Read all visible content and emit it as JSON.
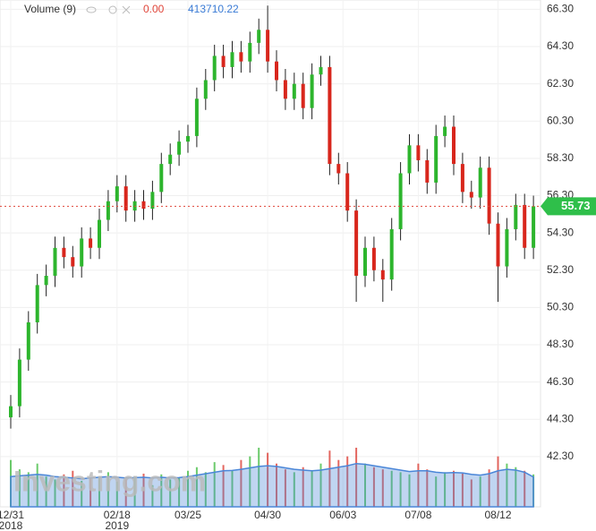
{
  "chart_data": {
    "type": "candlestick",
    "header": {
      "label": "Volume (9)",
      "change": "0.00",
      "ma_value": "413710.22"
    },
    "watermark": "Investing.com",
    "ylim": [
      39.6,
      66.8
    ],
    "yticks": [
      {
        "value": 42.3,
        "label": "42.30"
      },
      {
        "value": 44.3,
        "label": "44.30"
      },
      {
        "value": 46.3,
        "label": "46.30"
      },
      {
        "value": 48.3,
        "label": "48.30"
      },
      {
        "value": 50.3,
        "label": "50.30"
      },
      {
        "value": 52.3,
        "label": "52.30"
      },
      {
        "value": 54.3,
        "label": "54.30"
      },
      {
        "value": 56.3,
        "label": "56.30"
      },
      {
        "value": 58.3,
        "label": "58.30"
      },
      {
        "value": 60.3,
        "label": "60.30"
      },
      {
        "value": 62.3,
        "label": "62.30"
      },
      {
        "value": 64.3,
        "label": "64.30"
      },
      {
        "value": 66.3,
        "label": "66.30"
      }
    ],
    "xticks": [
      {
        "value": 0,
        "label": "12/31",
        "year": "2018"
      },
      {
        "value": 12,
        "label": "02/18",
        "year": "2019"
      },
      {
        "value": 20,
        "label": "03/25"
      },
      {
        "value": 29,
        "label": "04/30"
      },
      {
        "value": 37.5,
        "label": "06/03"
      },
      {
        "value": 46,
        "label": "07/08"
      },
      {
        "value": 55,
        "label": "08/12"
      }
    ],
    "last_price": 55.73,
    "up_color": "#2db52d",
    "down_color": "#d8261c",
    "wick_color": "#222",
    "grid": true,
    "open": [
      44.4,
      45.0,
      47.5,
      49.5,
      51.5,
      52.0,
      53.5,
      53.0,
      52.5,
      54.0,
      53.5,
      55.0,
      56.0,
      56.8,
      55.5,
      56.0,
      55.6,
      56.5,
      58.0,
      58.5,
      59.2,
      59.5,
      61.5,
      62.5,
      63.8,
      63.2,
      64.0,
      63.5,
      64.5,
      65.2,
      63.5,
      62.5,
      61.5,
      62.3,
      61.0,
      62.8,
      63.2,
      58.0,
      57.5,
      55.5,
      52.0,
      53.5,
      52.3,
      51.8,
      54.5,
      57.5,
      59.0,
      58.2,
      57.0,
      59.5,
      60.0,
      58.0,
      56.5,
      56.2,
      57.8,
      54.8,
      52.5,
      54.5,
      55.8,
      53.5
    ],
    "high": [
      45.6,
      48.1,
      50.1,
      52.1,
      52.6,
      54.1,
      54.1,
      53.6,
      54.6,
      54.6,
      55.6,
      56.6,
      57.4,
      57.4,
      56.6,
      56.6,
      57.1,
      58.6,
      59.1,
      59.8,
      60.1,
      62.1,
      63.1,
      64.4,
      64.4,
      64.6,
      64.6,
      65.1,
      65.8,
      66.5,
      64.1,
      63.1,
      62.9,
      62.9,
      63.4,
      63.8,
      63.8,
      58.6,
      58.1,
      56.1,
      54.1,
      54.1,
      52.9,
      55.1,
      58.1,
      59.6,
      59.6,
      58.8,
      60.1,
      60.6,
      60.6,
      58.6,
      57.1,
      58.4,
      58.4,
      55.4,
      55.1,
      56.4,
      56.4,
      56.3
    ],
    "low": [
      43.8,
      44.4,
      46.9,
      48.9,
      50.9,
      51.4,
      52.4,
      51.9,
      51.9,
      52.9,
      52.9,
      54.4,
      55.4,
      54.9,
      54.9,
      55.0,
      55.0,
      55.9,
      57.4,
      57.9,
      58.6,
      58.9,
      60.9,
      61.9,
      62.6,
      62.6,
      62.9,
      62.9,
      63.9,
      62.9,
      61.9,
      60.9,
      60.9,
      60.4,
      60.4,
      62.2,
      57.4,
      56.9,
      54.9,
      50.6,
      51.4,
      51.7,
      50.6,
      51.2,
      53.9,
      56.9,
      57.6,
      56.4,
      56.4,
      58.9,
      57.4,
      55.9,
      55.6,
      55.6,
      54.2,
      50.6,
      51.9,
      53.9,
      52.9,
      52.9
    ],
    "close": [
      45.0,
      47.5,
      49.5,
      51.5,
      52.0,
      53.5,
      53.0,
      52.5,
      54.0,
      53.5,
      55.0,
      56.0,
      56.8,
      55.5,
      56.0,
      55.6,
      56.5,
      58.0,
      58.5,
      59.2,
      59.5,
      61.5,
      62.5,
      63.8,
      63.2,
      64.0,
      63.5,
      64.5,
      65.2,
      63.5,
      62.5,
      61.5,
      62.3,
      61.0,
      62.8,
      63.2,
      58.0,
      57.5,
      55.5,
      52.0,
      53.5,
      52.3,
      51.8,
      54.5,
      57.5,
      59.0,
      58.2,
      57.0,
      59.5,
      60.0,
      58.0,
      56.5,
      56.2,
      57.8,
      54.8,
      52.5,
      54.5,
      55.8,
      53.5,
      55.73
    ],
    "volume": [
      650000,
      520000,
      480000,
      600000,
      420000,
      380000,
      450000,
      500000,
      360000,
      400000,
      420000,
      480000,
      350000,
      380000,
      420000,
      460000,
      300000,
      450000,
      380000,
      400000,
      500000,
      550000,
      480000,
      620000,
      580000,
      500000,
      650000,
      700000,
      820000,
      750000,
      600000,
      520000,
      480000,
      550000,
      500000,
      600000,
      780000,
      650000,
      700000,
      820000,
      600000,
      550000,
      520000,
      500000,
      480000,
      450000,
      600000,
      520000,
      420000,
      480000,
      500000,
      460000,
      380000,
      420000,
      520000,
      700000,
      600000,
      550000,
      500000,
      450000
    ],
    "volume_ma": {
      "color": "#4a86d8",
      "values": [
        420000,
        430000,
        440000,
        450000,
        440000,
        420000,
        410000,
        400000,
        390000,
        400000,
        410000,
        420000,
        410000,
        400000,
        405000,
        410000,
        400000,
        410000,
        400000,
        405000,
        420000,
        440000,
        460000,
        480000,
        500000,
        505000,
        520000,
        540000,
        560000,
        570000,
        560000,
        540000,
        520000,
        510000,
        500000,
        510000,
        530000,
        550000,
        570000,
        600000,
        590000,
        570000,
        550000,
        530000,
        510000,
        490000,
        500000,
        500000,
        480000,
        470000,
        475000,
        470000,
        450000,
        440000,
        460000,
        500000,
        520000,
        510000,
        480000,
        413710.22
      ]
    }
  }
}
